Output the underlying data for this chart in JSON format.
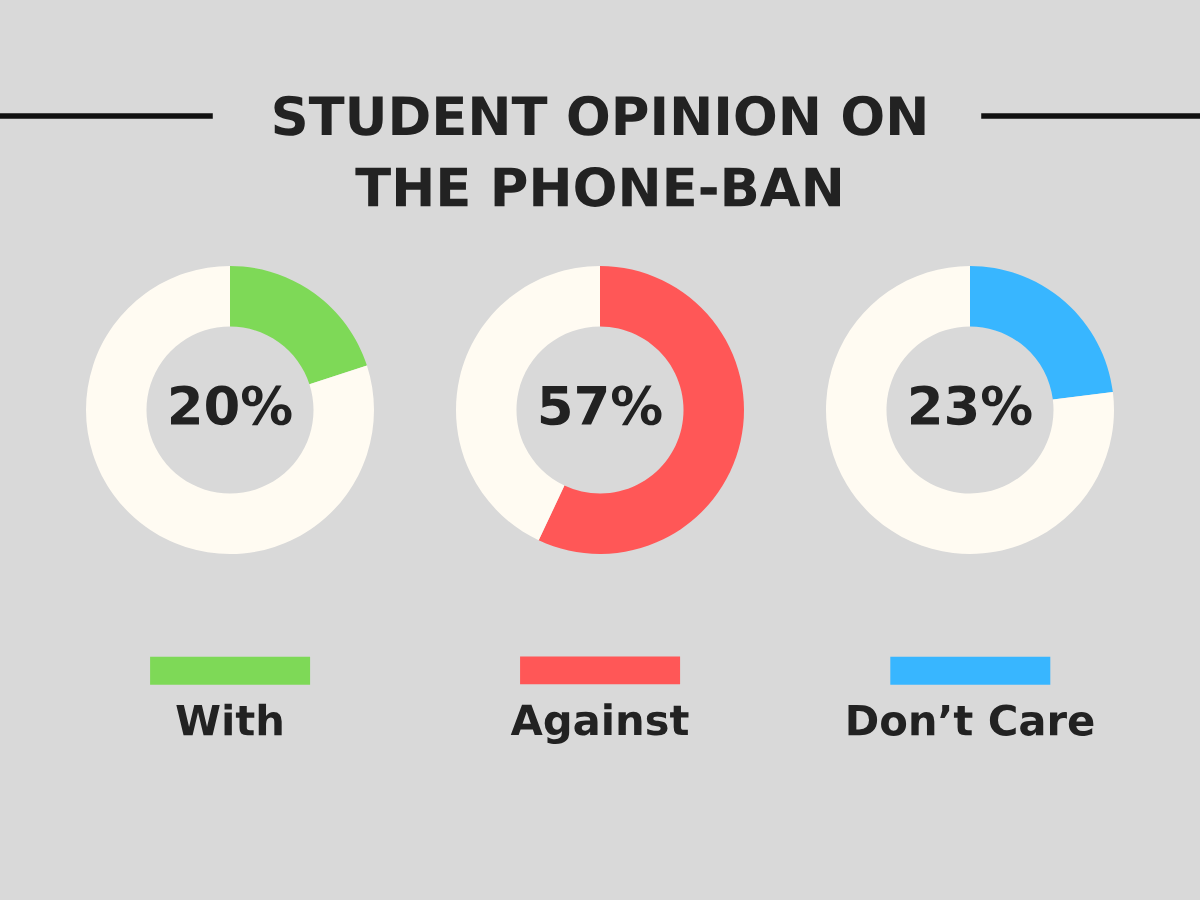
{
  "chart_data": [
    {
      "type": "donut",
      "title": "STUDENT OPINION ON\nTHE PHONE-BAN",
      "categories": [
        "With",
        null
      ],
      "values": [
        20,
        80
      ],
      "colors": [
        "#7ed957",
        "#fffbf2"
      ],
      "value_labels": [
        "20%",
        null
      ],
      "legend": "bottom"
    },
    {
      "type": "donut",
      "categories": [
        "Against",
        null
      ],
      "values": [
        57,
        43
      ],
      "colors": [
        "#ff5757",
        "#fffbf2"
      ],
      "value_labels": [
        "57%",
        null
      ],
      "legend": "bottom"
    },
    {
      "type": "donut",
      "categories": [
        "Don’t Care",
        null
      ],
      "values": [
        23,
        77
      ],
      "colors": [
        "#38b6ff",
        "#fffbf2"
      ],
      "value_labels": [
        "23%",
        null
      ],
      "legend": "bottom"
    }
  ]
}
